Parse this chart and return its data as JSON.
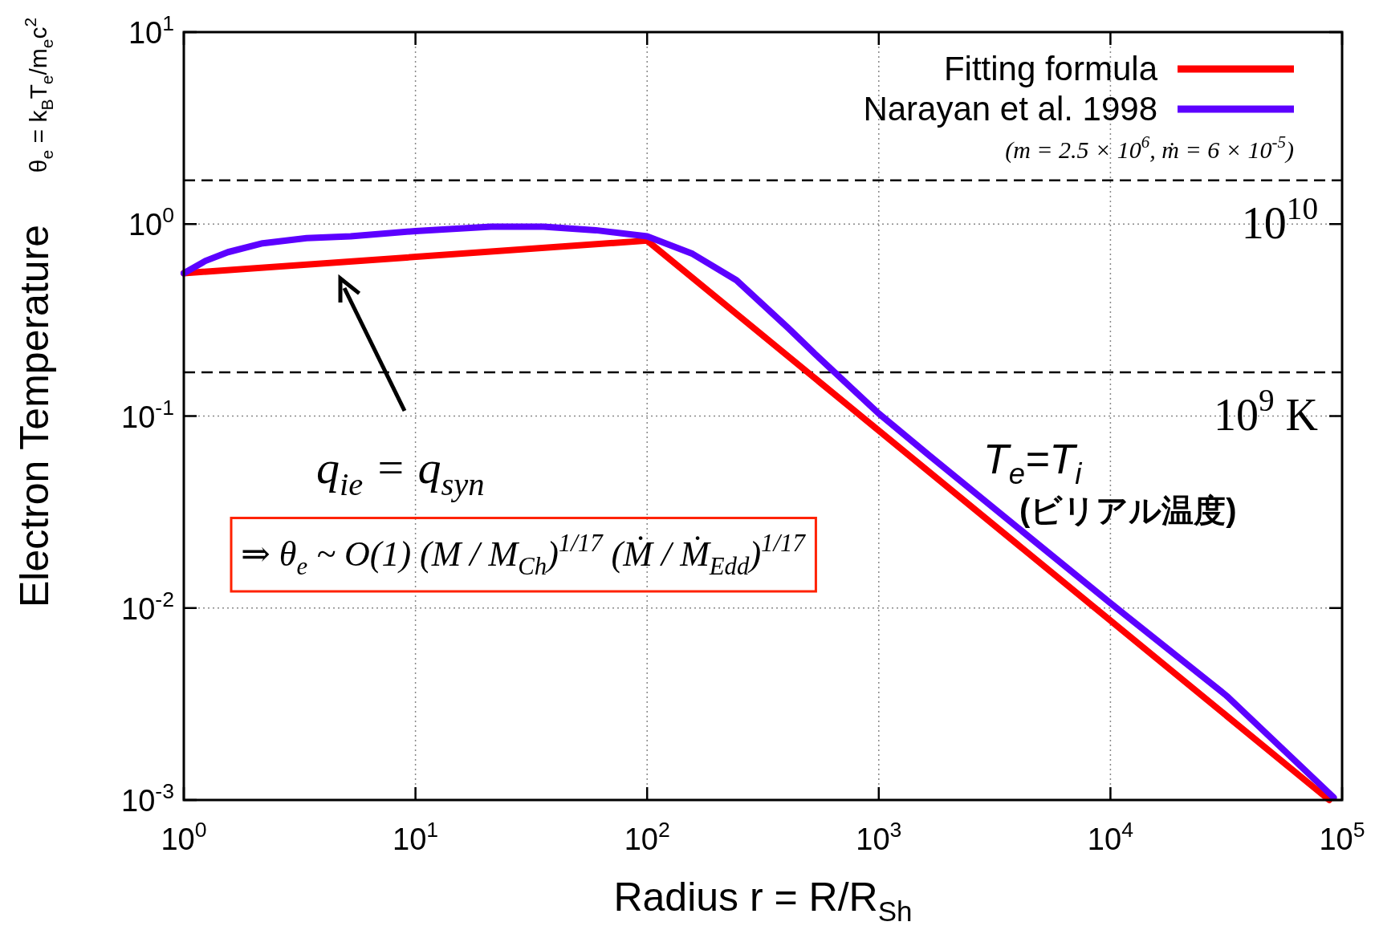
{
  "chart_data": {
    "type": "line",
    "xlabel": "Radius r = R/R$_{Sh}$",
    "ylabel": "Electron Temperature",
    "log": "xy",
    "grid": true,
    "legend": "top right",
    "line_style": "solid",
    "marker": "none",
    "xlim": [
      1,
      100000
    ],
    "ylim": [
      0.001,
      10
    ],
    "xticks": [
      {
        "value": 1,
        "label": "10$^{0}$"
      },
      {
        "value": 10,
        "label": "10$^{1}$"
      },
      {
        "value": 100,
        "label": "10$^{2}$"
      },
      {
        "value": 1000,
        "label": "10$^{3}$"
      },
      {
        "value": 10000,
        "label": "10$^{4}$"
      },
      {
        "value": 100000,
        "label": "10$^{5}$"
      }
    ],
    "yticks": [
      {
        "value": 0.001,
        "label": "10$^{-3}$"
      },
      {
        "value": 0.01,
        "label": "10$^{-2}$"
      },
      {
        "value": 0.1,
        "label": "10$^{-1}$"
      },
      {
        "value": 1,
        "label": "10$^{0}$"
      },
      {
        "value": 10,
        "label": "10$^{1}$"
      }
    ],
    "series": [
      {
        "name": "Fitting formula",
        "color": "#ff0000",
        "x": [
          1,
          100,
          88000
        ],
        "values": [
          0.555,
          0.82,
          0.001
        ]
      },
      {
        "name": "Narayan et al. 1998",
        "color": "#5c00ff",
        "x": [
          1,
          1.24,
          1.55,
          2.19,
          3.39,
          5.25,
          10,
          21.2,
          35.7,
          60,
          100,
          157,
          243,
          408,
          534,
          1000,
          1660,
          10000,
          32000,
          92000
        ],
        "values": [
          0.555,
          0.643,
          0.714,
          0.794,
          0.845,
          0.863,
          0.92,
          0.969,
          0.969,
          0.929,
          0.863,
          0.7,
          0.51,
          0.286,
          0.209,
          0.103,
          0.062,
          0.0106,
          0.00346,
          0.00103
        ]
      }
    ],
    "ref_lines": [
      {
        "axis": "y",
        "value": 1.69,
        "line_style": "dashed",
        "color": "#000000"
      },
      {
        "axis": "y",
        "value": 0.169,
        "line_style": "dashed",
        "color": "#000000"
      }
    ],
    "annotations": [
      "θ$_{e}$ = k$_{B}$T$_{e}$/m$_{e}$c$^{2}$",
      "(m = 2.5 × 10$^{6}$, ṁ = 6 × 10$^{-5}$)",
      "q$_{ie}$ = q$_{syn}$",
      "⇒ θ$_{e}$ ~ O(1) (M / M$_{Ch}$)$^{1/17}$ (Ṁ / Ṁ$_{Edd}$)$^{1/17}$",
      "T$_{e}$=T$_{i}$",
      "(ビリアル温度)",
      "10$^{10}$",
      "10$^{9}$ K"
    ]
  }
}
